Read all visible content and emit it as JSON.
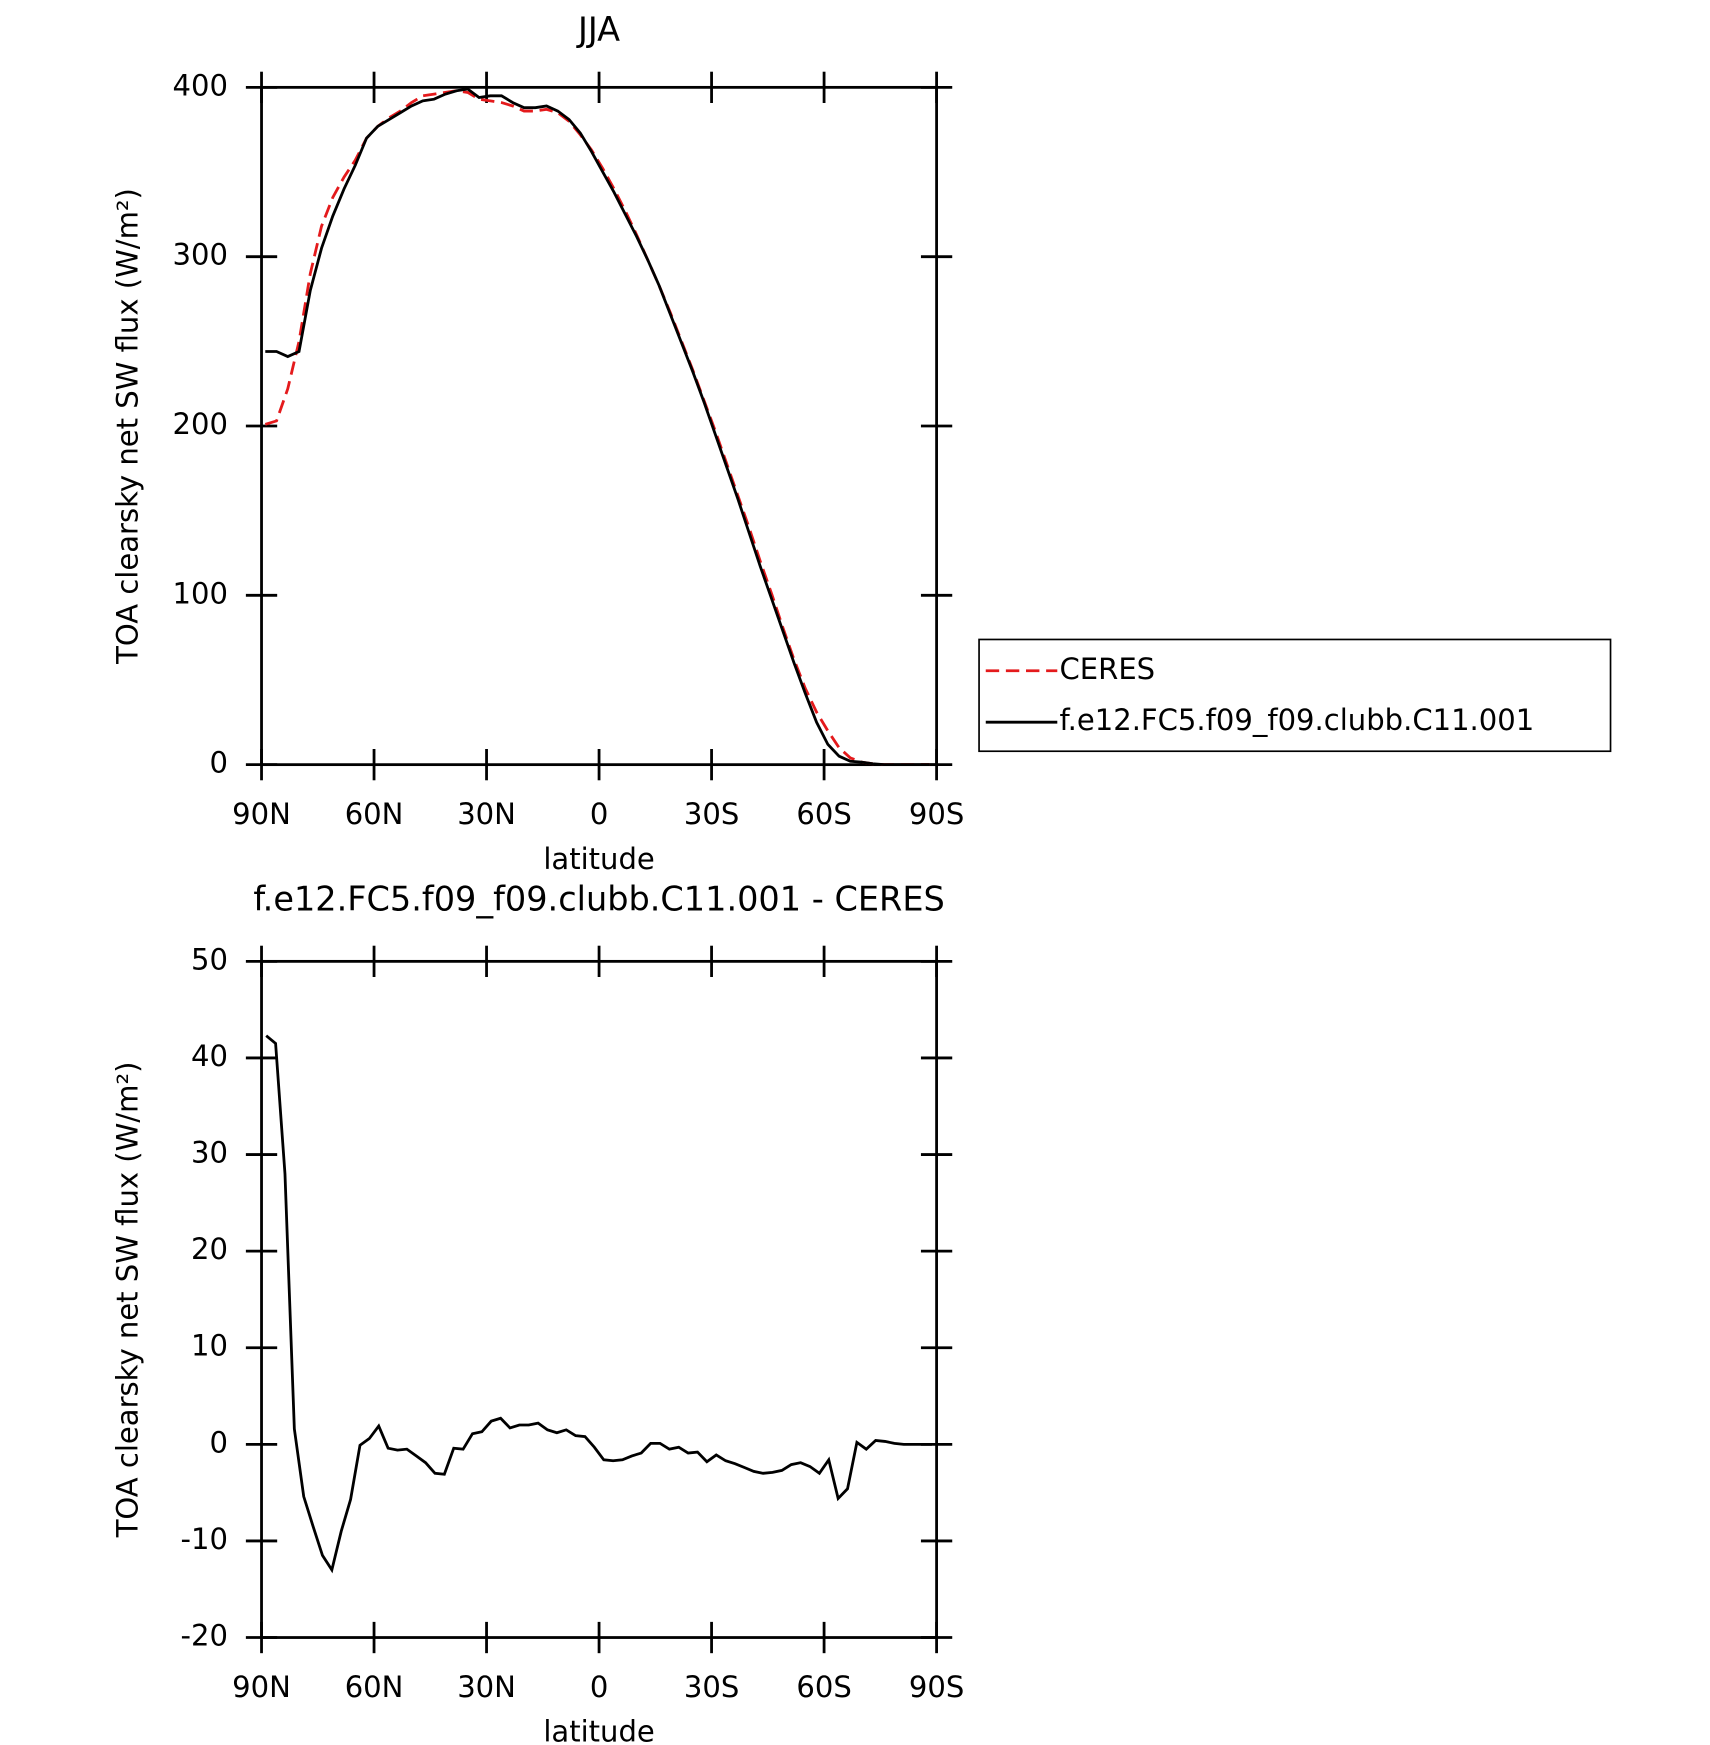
{
  "chart_data": [
    {
      "type": "line",
      "title": "JJA",
      "xlabel": "latitude",
      "ylabel": "TOA clearsky net SW flux (W/m²)",
      "xlim": [
        90,
        -90
      ],
      "xticks": [
        {
          "value": 90,
          "label": "90N"
        },
        {
          "value": 60,
          "label": "60N"
        },
        {
          "value": 30,
          "label": "30N"
        },
        0,
        {
          "value": -30,
          "label": "30S"
        },
        {
          "value": -60,
          "label": "60S"
        },
        {
          "value": -90,
          "label": "90S"
        }
      ],
      "ylim": [
        0,
        400
      ],
      "yticks": [
        0,
        100,
        200,
        300,
        400
      ],
      "legend": "outside right",
      "x": [
        89,
        86,
        83,
        80,
        77,
        74,
        71,
        68,
        65,
        62,
        59,
        56,
        53,
        50,
        47,
        44,
        41,
        38,
        35,
        32,
        29,
        26,
        23,
        20,
        17,
        14,
        11,
        8,
        5,
        2,
        -1,
        -4,
        -7,
        -10,
        -13,
        -16,
        -19,
        -22,
        -25,
        -28,
        -31,
        -34,
        -37,
        -40,
        -43,
        -46,
        -49,
        -52,
        -55,
        -58,
        -61,
        -64,
        -67,
        -70,
        -73,
        -76,
        -79,
        -82,
        -85,
        -88
      ],
      "series": [
        {
          "name": "CERES",
          "color": "#e41a1c",
          "line_style": "dashed",
          "values": [
            201,
            203,
            222,
            250,
            290,
            318,
            335,
            347,
            357,
            370,
            377,
            382,
            386,
            391,
            395,
            396,
            397,
            398,
            397,
            393,
            392,
            391,
            389,
            386,
            386,
            387,
            385,
            380,
            372,
            363,
            352,
            340,
            327,
            313,
            298,
            283,
            267,
            250,
            233,
            215,
            197,
            178,
            159,
            140,
            120,
            101,
            81,
            62,
            45,
            31,
            20,
            10,
            4,
            1.5,
            0.5,
            0,
            0,
            0,
            0,
            0
          ]
        },
        {
          "name": "f.e12.FC5.f09_f09.clubb.C11.001",
          "color": "#000000",
          "line_style": "solid",
          "values": [
            244,
            244,
            241,
            244,
            280,
            305,
            324,
            340,
            354,
            370,
            377,
            381,
            385,
            389,
            392,
            393,
            396,
            398,
            399,
            394,
            395,
            395,
            391,
            388,
            388,
            389,
            386,
            381,
            373,
            362,
            350,
            338,
            325,
            312,
            298,
            283,
            266,
            249,
            232,
            214,
            195,
            176,
            157,
            137,
            117,
            98,
            79,
            60,
            42,
            25,
            12,
            5,
            2,
            1.5,
            0.5,
            0,
            0,
            0,
            0,
            0
          ]
        }
      ]
    },
    {
      "type": "line",
      "title": "f.e12.FC5.f09_f09.clubb.C11.001 - CERES",
      "xlabel": "latitude",
      "ylabel": "TOA clearsky net SW flux (W/m²)",
      "xlim": [
        90,
        -90
      ],
      "xticks": [
        {
          "value": 90,
          "label": "90N"
        },
        {
          "value": 60,
          "label": "60N"
        },
        {
          "value": 30,
          "label": "30N"
        },
        0,
        {
          "value": -30,
          "label": "30S"
        },
        {
          "value": -60,
          "label": "60S"
        },
        {
          "value": -90,
          "label": "90S"
        }
      ],
      "ylim": [
        -20,
        50
      ],
      "yticks": [
        -20,
        -10,
        0,
        10,
        20,
        30,
        40,
        50
      ],
      "x": [
        88.75,
        86.25,
        83.75,
        81.25,
        78.75,
        76.25,
        73.75,
        71.25,
        68.75,
        66.25,
        63.75,
        61.25,
        58.75,
        56.25,
        53.75,
        51.25,
        48.75,
        46.25,
        43.75,
        41.25,
        38.75,
        36.25,
        33.75,
        31.25,
        28.75,
        26.25,
        23.75,
        21.25,
        18.75,
        16.25,
        13.75,
        11.25,
        8.75,
        6.25,
        3.75,
        1.25,
        -1.25,
        -3.75,
        -6.25,
        -8.75,
        -11.25,
        -13.75,
        -16.25,
        -18.75,
        -21.25,
        -23.75,
        -26.25,
        -28.75,
        -31.25,
        -33.75,
        -36.25,
        -38.75,
        -41.25,
        -43.75,
        -46.25,
        -48.75,
        -51.25,
        -53.75,
        -56.25,
        -58.75,
        -61.25,
        -63.75,
        -66.25,
        -68.75,
        -71.25,
        -73.75,
        -76.25,
        -78.75,
        -81.25,
        -83.75,
        -86.25,
        -88.75
      ],
      "series": [
        {
          "name": "f.e12.FC5.f09_f09.clubb.C11.001 - CERES",
          "color": "#000000",
          "line_style": "solid",
          "values": [
            42.3,
            41.5,
            28,
            1.6,
            -5.4,
            -8.5,
            -11.5,
            -13,
            -9,
            -5.7,
            -0.1,
            0.6,
            1.9,
            -0.4,
            -0.6,
            -0.5,
            -1.2,
            -1.9,
            -3,
            -3.1,
            -0.4,
            -0.5,
            1.1,
            1.3,
            2.4,
            2.7,
            1.7,
            2.0,
            2.0,
            2.2,
            1.5,
            1.2,
            1.5,
            0.9,
            0.8,
            -0.3,
            -1.6,
            -1.7,
            -1.6,
            -1.2,
            -0.9,
            0.1,
            0.1,
            -0.5,
            -0.3,
            -0.9,
            -0.8,
            -1.8,
            -1.1,
            -1.7,
            -2.0,
            -2.4,
            -2.8,
            -3.0,
            -2.9,
            -2.7,
            -2.1,
            -1.9,
            -2.3,
            -3.0,
            -1.6,
            -5.6,
            -4.6,
            0.2,
            -0.5,
            0.4,
            0.3,
            0.1,
            0,
            0,
            0,
            0
          ]
        }
      ]
    }
  ]
}
